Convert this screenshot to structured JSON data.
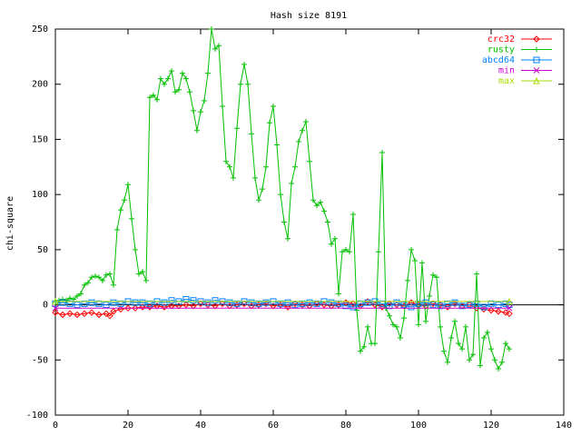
{
  "chart_data": {
    "type": "line",
    "title": "Hash size 8191",
    "xlabel": "",
    "ylabel": "chi-square",
    "xlim": [
      0,
      140
    ],
    "ylim": [
      -100,
      250
    ],
    "xticks": [
      0,
      20,
      40,
      60,
      80,
      100,
      120,
      140
    ],
    "yticks": [
      -100,
      -50,
      0,
      50,
      100,
      150,
      200,
      250
    ],
    "grid": false,
    "legend_position": "top-right",
    "series": [
      {
        "name": "crc32",
        "color": "#ff0000",
        "marker": "diamond",
        "x": [
          0,
          2,
          4,
          6,
          8,
          10,
          12,
          14,
          15,
          16,
          18,
          20,
          22,
          24,
          26,
          28,
          30,
          32,
          34,
          36,
          38,
          40,
          42,
          44,
          46,
          48,
          50,
          52,
          54,
          56,
          58,
          60,
          62,
          64,
          66,
          68,
          70,
          72,
          74,
          76,
          78,
          80,
          82,
          84,
          86,
          88,
          90,
          92,
          94,
          96,
          98,
          100,
          102,
          104,
          106,
          108,
          110,
          112,
          114,
          116,
          118,
          120,
          122,
          124,
          125
        ],
        "values": [
          -7,
          -9,
          -8,
          -9,
          -8,
          -7,
          -9,
          -8,
          -10,
          -6,
          -4,
          -3,
          -3,
          -2,
          -2,
          -1,
          -2,
          -1,
          -1,
          0,
          -1,
          1,
          0,
          -1,
          1,
          -1,
          0,
          1,
          -1,
          0,
          1,
          -1,
          0,
          -2,
          1,
          0,
          -1,
          1,
          0,
          -1,
          0,
          2,
          1,
          -1,
          3,
          0,
          -2,
          1,
          0,
          -1,
          2,
          0,
          -1,
          1,
          0,
          -2,
          1,
          -1,
          0,
          -3,
          -4,
          -5,
          -6,
          -7,
          -8
        ]
      },
      {
        "name": "rusty",
        "color": "#00c000",
        "marker": "plus",
        "x": [
          0,
          1,
          2,
          3,
          4,
          5,
          6,
          7,
          8,
          9,
          10,
          11,
          12,
          13,
          14,
          15,
          16,
          17,
          18,
          19,
          20,
          21,
          22,
          23,
          24,
          25,
          26,
          27,
          28,
          29,
          30,
          31,
          32,
          33,
          34,
          35,
          36,
          37,
          38,
          39,
          40,
          41,
          42,
          43,
          44,
          45,
          46,
          47,
          48,
          49,
          50,
          51,
          52,
          53,
          54,
          55,
          56,
          57,
          58,
          59,
          60,
          61,
          62,
          63,
          64,
          65,
          66,
          67,
          68,
          69,
          70,
          71,
          72,
          73,
          74,
          75,
          76,
          77,
          78,
          79,
          80,
          81,
          82,
          83,
          84,
          85,
          86,
          87,
          88,
          89,
          90,
          91,
          92,
          93,
          94,
          95,
          96,
          97,
          98,
          99,
          100,
          101,
          102,
          103,
          104,
          105,
          106,
          107,
          108,
          109,
          110,
          111,
          112,
          113,
          114,
          115,
          116,
          117,
          118,
          119,
          120,
          121,
          122,
          123,
          124,
          125
        ],
        "values": [
          3,
          4,
          5,
          4,
          6,
          5,
          8,
          10,
          18,
          20,
          25,
          26,
          25,
          22,
          27,
          28,
          18,
          68,
          86,
          95,
          109,
          78,
          50,
          28,
          30,
          22,
          188,
          190,
          186,
          205,
          200,
          205,
          212,
          193,
          195,
          210,
          205,
          193,
          176,
          158,
          175,
          185,
          210,
          250,
          232,
          235,
          180,
          130,
          125,
          115,
          160,
          200,
          218,
          200,
          155,
          115,
          95,
          105,
          125,
          165,
          180,
          145,
          100,
          75,
          60,
          110,
          125,
          148,
          158,
          166,
          130,
          95,
          90,
          93,
          85,
          75,
          55,
          60,
          10,
          48,
          50,
          48,
          82,
          -5,
          -42,
          -38,
          -20,
          -35,
          -35,
          48,
          138,
          -3,
          -10,
          -18,
          -20,
          -30,
          -12,
          22,
          50,
          40,
          -18,
          38,
          -15,
          8,
          27,
          25,
          -20,
          -42,
          -52,
          -30,
          -15,
          -35,
          -40,
          -20,
          -50,
          -45,
          28,
          -55,
          -30,
          -25,
          -40,
          -50,
          -58,
          -52,
          -35,
          -40
        ]
      },
      {
        "name": "abcd64",
        "color": "#0080ff",
        "marker": "square",
        "x": [
          0,
          2,
          4,
          6,
          8,
          10,
          12,
          14,
          16,
          18,
          20,
          22,
          24,
          26,
          28,
          30,
          32,
          34,
          36,
          38,
          40,
          42,
          44,
          46,
          48,
          50,
          52,
          54,
          56,
          58,
          60,
          62,
          64,
          66,
          68,
          70,
          72,
          74,
          76,
          78,
          80,
          82,
          84,
          86,
          88,
          90,
          92,
          94,
          96,
          98,
          100,
          102,
          104,
          106,
          108,
          110,
          112,
          114,
          116,
          118,
          120,
          122,
          124,
          125
        ],
        "values": [
          1,
          2,
          1,
          0,
          1,
          2,
          1,
          0,
          2,
          1,
          3,
          2,
          2,
          1,
          3,
          2,
          4,
          3,
          5,
          4,
          3,
          2,
          4,
          3,
          2,
          1,
          3,
          2,
          1,
          2,
          3,
          1,
          2,
          0,
          1,
          2,
          1,
          3,
          2,
          1,
          -1,
          -2,
          1,
          2,
          3,
          1,
          -1,
          2,
          0,
          -2,
          1,
          2,
          0,
          -1,
          1,
          2,
          -1,
          0,
          1,
          -2,
          1,
          0,
          1,
          0
        ]
      },
      {
        "name": "min",
        "color": "#cc00cc",
        "marker": "x",
        "x": [
          0,
          125
        ],
        "values": [
          -3,
          -3
        ]
      },
      {
        "name": "max",
        "color": "#aadd00",
        "marker": "triangle",
        "x": [
          0,
          125
        ],
        "values": [
          3,
          3
        ]
      }
    ]
  }
}
